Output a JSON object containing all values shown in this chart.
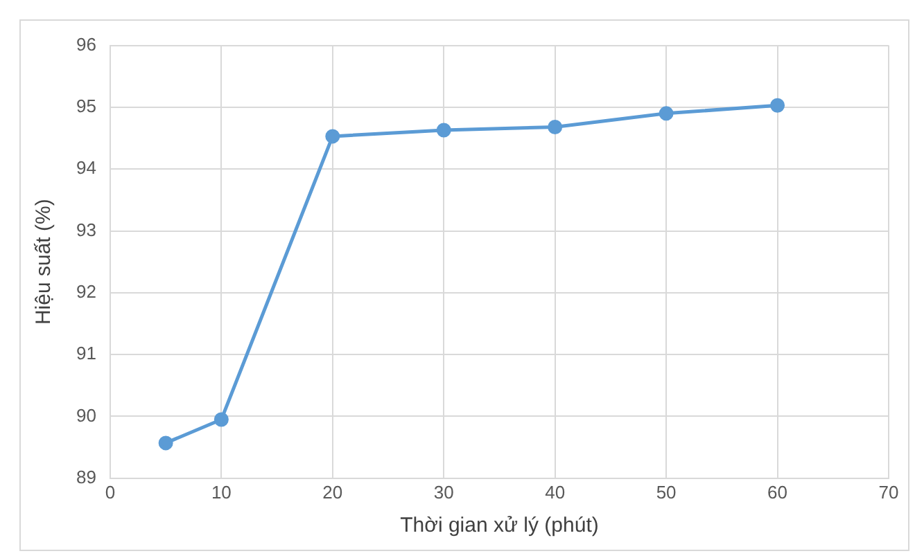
{
  "chart_data": {
    "type": "line",
    "xlabel": "Thời gian xử lý (phút)",
    "ylabel": "Hiệu suất (%)",
    "x": [
      5,
      10,
      20,
      30,
      40,
      50,
      60
    ],
    "series": [
      {
        "color": "#5b9bd5",
        "values": [
          89.57,
          89.95,
          94.53,
          94.63,
          94.68,
          94.9,
          95.03
        ]
      }
    ],
    "xlim": [
      0,
      70
    ],
    "xticks": [
      0,
      10,
      20,
      30,
      40,
      50,
      60,
      70
    ],
    "ylim": [
      89,
      96
    ],
    "yticks": [
      89,
      90,
      91,
      92,
      93,
      94,
      95,
      96
    ],
    "grid": true,
    "legend": false,
    "marker": "circle",
    "line_style": "solid"
  }
}
